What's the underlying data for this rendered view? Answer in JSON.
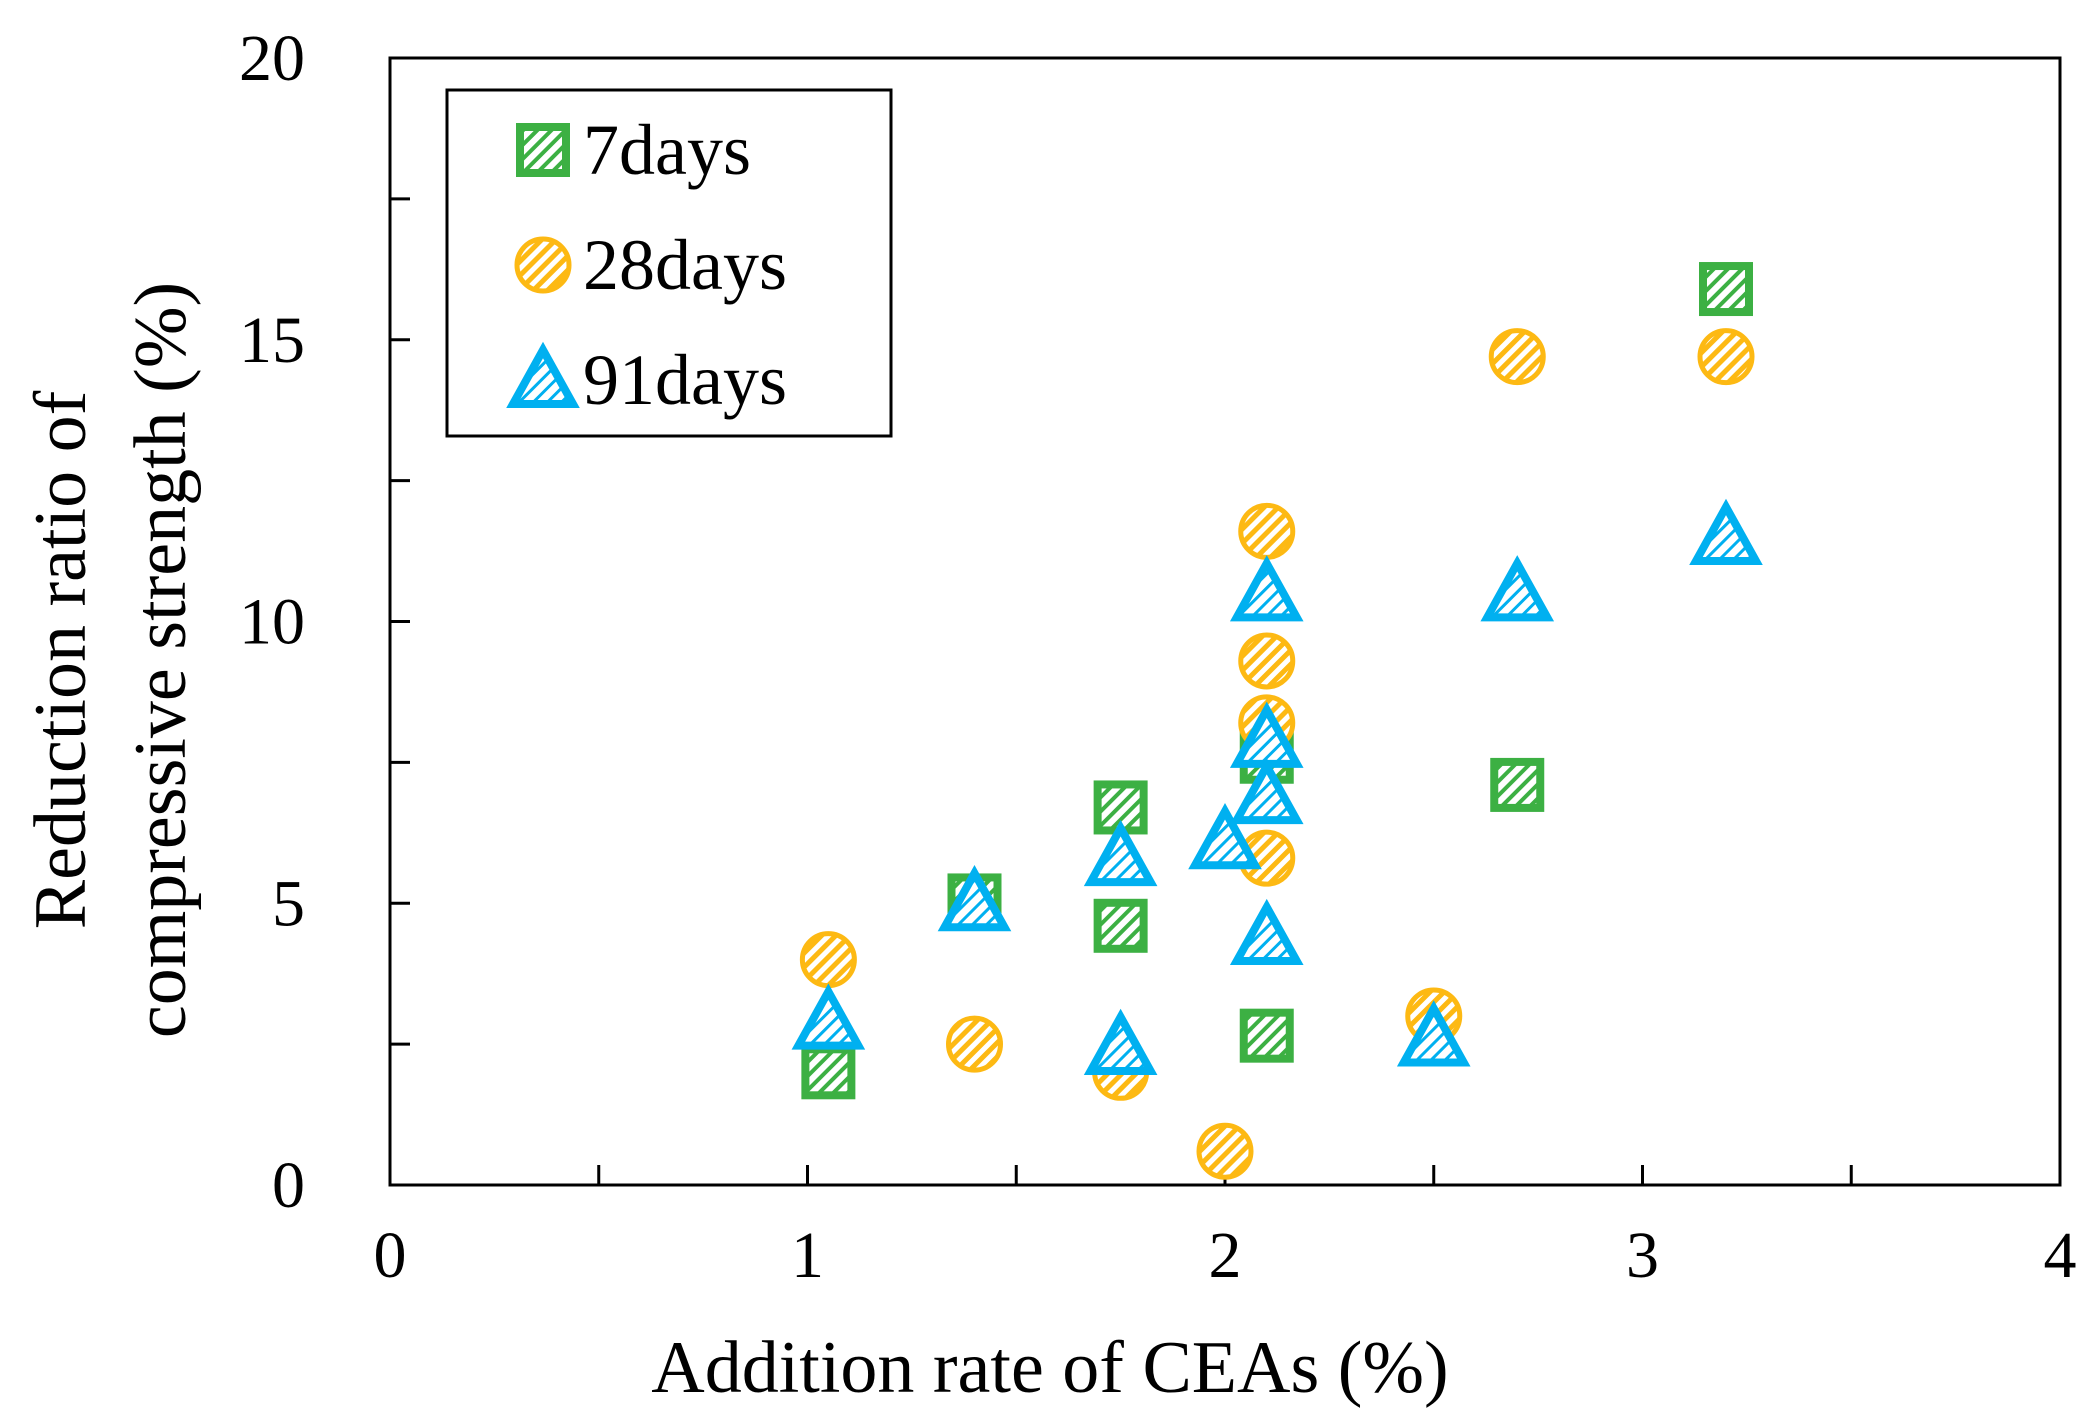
{
  "chart_data": {
    "type": "scatter",
    "title": "",
    "xlabel": "Addition rate of CEAs (%)",
    "ylabel_lines": [
      "Reduction ratio of",
      "compressive strength (%)"
    ],
    "xlim": [
      0,
      4
    ],
    "ylim": [
      0,
      20
    ],
    "x_ticks": [
      0,
      1,
      2,
      3,
      4
    ],
    "x_minor_ticks": [
      0.5,
      1.5,
      2.5,
      3.5
    ],
    "y_ticks": [
      0,
      5,
      10,
      15,
      20
    ],
    "y_minor_ticks": [
      2.5,
      7.5,
      12.5,
      17.5
    ],
    "x_tick_labels": [
      "0",
      "1",
      "2",
      "3",
      "4"
    ],
    "y_tick_labels": [
      "0",
      "5",
      "10",
      "15",
      "20"
    ],
    "grid": false,
    "legend_position": "top-left",
    "series": [
      {
        "name": "7days",
        "marker": "square",
        "color": "#3cb043",
        "points": [
          [
            1.05,
            2.0
          ],
          [
            1.4,
            5.05
          ],
          [
            1.75,
            6.7
          ],
          [
            1.75,
            4.6
          ],
          [
            2.1,
            7.6
          ],
          [
            2.1,
            2.65
          ],
          [
            2.7,
            7.1
          ],
          [
            3.2,
            15.9
          ]
        ]
      },
      {
        "name": "28days",
        "marker": "circle",
        "color": "#fdb913",
        "points": [
          [
            1.05,
            4.0
          ],
          [
            1.4,
            2.5
          ],
          [
            1.75,
            2.0
          ],
          [
            2.0,
            0.6
          ],
          [
            2.1,
            11.6
          ],
          [
            2.1,
            9.3
          ],
          [
            2.1,
            8.2
          ],
          [
            2.1,
            5.8
          ],
          [
            2.5,
            3.0
          ],
          [
            2.7,
            14.7
          ],
          [
            3.2,
            14.7
          ]
        ]
      },
      {
        "name": "91days",
        "marker": "triangle",
        "color": "#00b0f0",
        "points": [
          [
            1.05,
            2.9
          ],
          [
            1.4,
            5.0
          ],
          [
            1.75,
            5.8
          ],
          [
            1.75,
            2.45
          ],
          [
            2.0,
            6.1
          ],
          [
            2.1,
            10.5
          ],
          [
            2.1,
            7.9
          ],
          [
            2.1,
            6.9
          ],
          [
            2.1,
            4.4
          ],
          [
            2.5,
            2.6
          ],
          [
            2.7,
            10.5
          ],
          [
            3.2,
            11.5
          ]
        ]
      }
    ]
  }
}
